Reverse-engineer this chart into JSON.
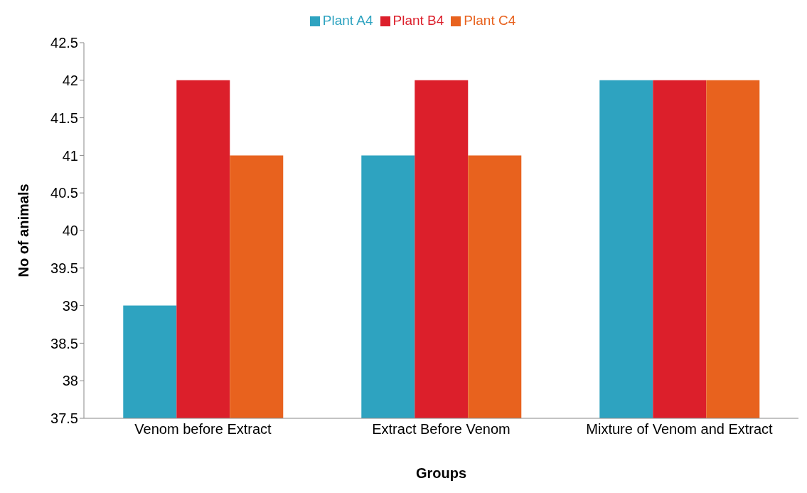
{
  "chart_data": {
    "type": "bar",
    "xlabel": "Groups",
    "ylabel": "No of animals",
    "categories": [
      "Venom before Extract",
      "Extract Before Venom",
      "Mixture of Venom and Extract"
    ],
    "series": [
      {
        "name": "Plant A4",
        "color": "#2ea3c0",
        "values": [
          39,
          41,
          42
        ]
      },
      {
        "name": "Plant B4",
        "color": "#dc1f2b",
        "values": [
          42,
          42,
          42
        ]
      },
      {
        "name": "Plant C4",
        "color": "#e8621e",
        "values": [
          41,
          41,
          42
        ]
      }
    ],
    "ylim": [
      37.5,
      42.5
    ],
    "yticks": [
      37.5,
      38,
      38.5,
      39,
      39.5,
      40,
      40.5,
      41,
      41.5,
      42,
      42.5
    ],
    "grid": false,
    "legend": "top"
  }
}
